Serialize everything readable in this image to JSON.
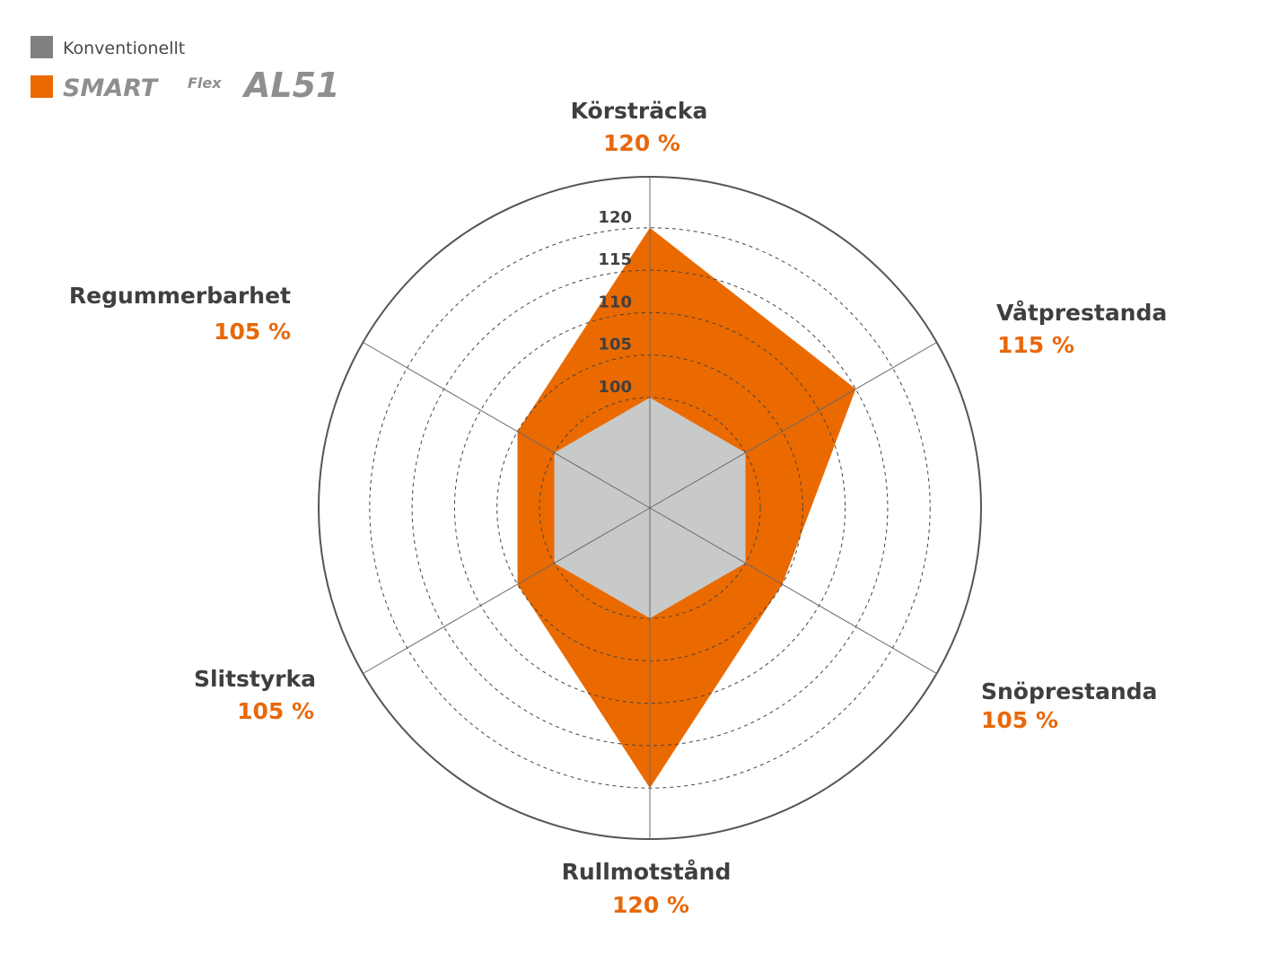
{
  "colors": {
    "accent": "#eb6a00",
    "conventional_fill": "#c8c9c9",
    "legend_conventional": "#808080",
    "axis_line": "#555555",
    "text": "#3f3f3f",
    "background": "#ffffff"
  },
  "legend": {
    "items": [
      {
        "label": "Konventionellt",
        "color": "#808080"
      },
      {
        "label": "SMART Flex AL51",
        "color": "#eb6a00",
        "is_logo": true
      }
    ],
    "logo": {
      "word1": "SMART",
      "word2": "Flex",
      "word3": "AL51"
    }
  },
  "chart_data": {
    "type": "radar",
    "axes": [
      "Körsträcka",
      "Våtprestanda",
      "Snöprestanda",
      "Rullmotstånd",
      "Slitstyrka",
      "Regummerbarhet"
    ],
    "value_labels": [
      "120 %",
      "115 %",
      "105 %",
      "120 %",
      "105 %",
      "105 %"
    ],
    "series": [
      {
        "name": "Konventionellt",
        "values": [
          100,
          100,
          100,
          100,
          100,
          100
        ],
        "color": "#c8c9c9"
      },
      {
        "name": "SMART Flex AL51",
        "values": [
          120,
          115,
          105,
          120,
          105,
          105
        ],
        "color": "#eb6a00"
      }
    ],
    "ticks": [
      "100",
      "105",
      "110",
      "115",
      "120"
    ],
    "tick_values": [
      100,
      105,
      110,
      115,
      120
    ],
    "range": [
      87,
      126
    ],
    "grid": true,
    "legend_position": "top-left"
  }
}
